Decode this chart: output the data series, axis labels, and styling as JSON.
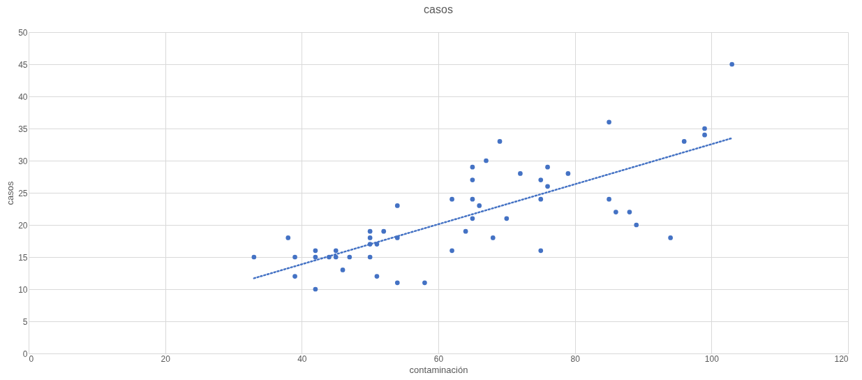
{
  "chart_data": {
    "type": "scatter",
    "title": "casos",
    "xlabel": "contaminación",
    "ylabel": "casos",
    "xlim": [
      0,
      120
    ],
    "xticks": [
      0,
      20,
      40,
      60,
      80,
      100,
      120
    ],
    "ylim": [
      0,
      50
    ],
    "yticks": [
      0,
      5,
      10,
      15,
      20,
      25,
      30,
      35,
      40,
      45,
      50
    ],
    "grid": true,
    "series": [
      {
        "type": "scatter",
        "marker": "circle",
        "color": "#4472c4",
        "x": [
          33,
          38,
          39,
          39,
          42,
          42,
          42,
          44,
          45,
          45,
          46,
          47,
          50,
          50,
          50,
          50,
          51,
          51,
          52,
          54,
          54,
          54,
          58,
          62,
          62,
          64,
          65,
          65,
          65,
          65,
          66,
          67,
          68,
          69,
          70,
          72,
          75,
          75,
          75,
          76,
          76,
          79,
          85,
          85,
          86,
          88,
          89,
          94,
          96,
          99,
          99,
          103
        ],
        "values": [
          15,
          18,
          15,
          12,
          16,
          15,
          10,
          15,
          16,
          15,
          13,
          15,
          19,
          18,
          17,
          15,
          17,
          12,
          19,
          23,
          18,
          11,
          11,
          24,
          16,
          19,
          29,
          27,
          24,
          21,
          23,
          30,
          18,
          33,
          21,
          28,
          27,
          24,
          16,
          29,
          26,
          28,
          36,
          24,
          22,
          22,
          20,
          18,
          33,
          35,
          34,
          45
        ]
      },
      {
        "type": "line",
        "color": "#4472c4",
        "line_style": "dotted",
        "x": [
          33,
          103
        ],
        "values": [
          11.7,
          33.5
        ]
      }
    ]
  }
}
